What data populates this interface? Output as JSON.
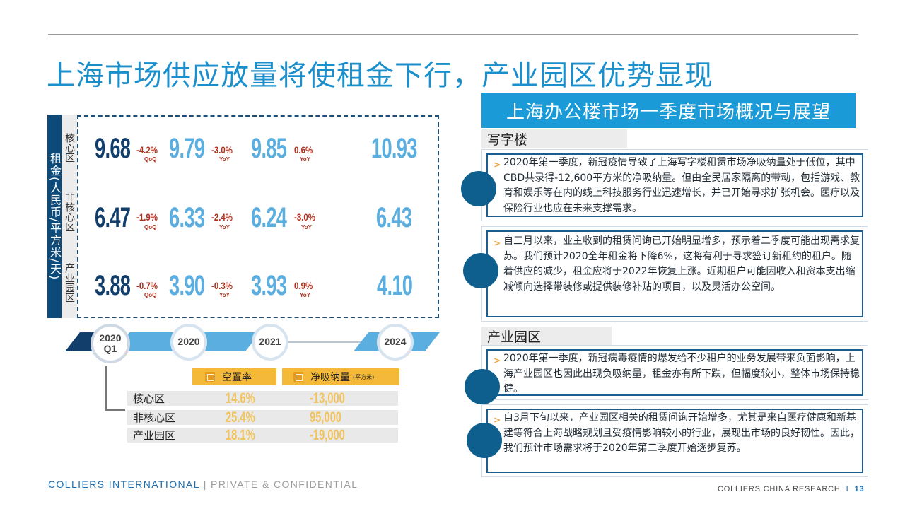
{
  "title": "上海市场供应放量将使租金下行，产业园区优势显现",
  "left": {
    "axis_label": "租金(人民币/平方米/天)",
    "zones": [
      "核心区",
      "非核心区",
      "产业园区"
    ],
    "rows": [
      {
        "zone": "核心区",
        "q1": "9.68",
        "q1_chg": "-4.2%",
        "q1_sub": "QoQ",
        "y2020": "9.79",
        "y2020_chg": "-3.0%",
        "y2020_sub": "YoY",
        "y2021": "9.85",
        "y2021_chg": "0.6%",
        "y2021_sub": "YoY",
        "y2024": "10.93"
      },
      {
        "zone": "非核心区",
        "q1": "6.47",
        "q1_chg": "-1.9%",
        "q1_sub": "QoQ",
        "y2020": "6.33",
        "y2020_chg": "-2.4%",
        "y2020_sub": "YoY",
        "y2021": "6.24",
        "y2021_chg": "-3.0%",
        "y2021_sub": "YoY",
        "y2024": "6.43"
      },
      {
        "zone": "产业园区",
        "q1": "3.88",
        "q1_chg": "-0.7%",
        "q1_sub": "QoQ",
        "y2020": "3.90",
        "y2020_chg": "-0.3%",
        "y2020_sub": "YoY",
        "y2021": "3.93",
        "y2021_chg": "0.9%",
        "y2021_sub": "YoY",
        "y2024": "4.10"
      }
    ],
    "timeline": [
      {
        "year": "2020",
        "sub": "Q1"
      },
      {
        "year": "2020",
        "sub": ""
      },
      {
        "year": "2021",
        "sub": ""
      },
      {
        "year": "2024",
        "sub": ""
      }
    ],
    "table": {
      "col1": "空置率",
      "col1_icon": "%",
      "col2": "净吸纳量",
      "col2_icon": "RENT",
      "col2_unit": "(平方米)",
      "rows": [
        {
          "label": "核心区",
          "vacancy": "14.6%",
          "absorption": "-13,000"
        },
        {
          "label": "非核心区",
          "vacancy": "25.4%",
          "absorption": "95,000"
        },
        {
          "label": "产业园区",
          "vacancy": "18.1%",
          "absorption": "-19,000"
        }
      ]
    }
  },
  "right": {
    "header": "上海办公楼市场一季度市场概况与展望",
    "sections": [
      {
        "title": "写字楼",
        "cards": [
          "2020年第一季度，新冠疫情导致了上海写字楼租赁市场净吸纳量处于低位，其中CBD共录得-12,600平方米的净吸纳量。但由全民居家隔离的带动，包括游戏、教育和娱乐等在内的线上科技服务行业迅速增长，并已开始寻求扩张机会。医疗以及保险行业也应在未来支撑需求。",
          "自三月以来，业主收到的租赁问询已开始明显增多，预示着二季度可能出现需求复苏。我们预计2020全年租金将下降6%，这将有利于寻求签订新租约的租户。随着供应的减少，租金应将于2022年恢复上涨。近期租户可能因收入和资本支出缩减倾向选择带装修或提供装修补贴的项目，以及灵活办公空间。"
        ]
      },
      {
        "title": "产业园区",
        "cards": [
          "2020年第一季度，新冠病毒疫情的爆发给不少租户的业务发展带来负面影响，上海产业园区也因此出现负吸纳量，租金亦有所下跌，但幅度较小，整体市场保持稳健。",
          "自3月下旬以来，产业园区相关的租赁问询开始增多，尤其是来自医疗健康和新基建等符合上海战略规划且受疫情影响较小的行业，展现出市场的良好韧性。因此，我们预计市场需求将于2020年第二季度开始逐步复苏。"
        ]
      }
    ]
  },
  "footer": {
    "brand": "COLLIERS INTERNATIONAL",
    "separator": " | ",
    "confidential": "PRIVATE & CONFIDENTIAL",
    "research": "COLLIERS CHINA RESEARCH",
    "research_sep": "I",
    "page": "13"
  },
  "colors": {
    "title_blue": "#1b8fcb",
    "dark_navy": "#123e6c",
    "light_blue": "#5aaee0",
    "change_red": "#b0301e",
    "accent_orange": "#f5b93a",
    "table_value_gold": "#f1c35a"
  }
}
